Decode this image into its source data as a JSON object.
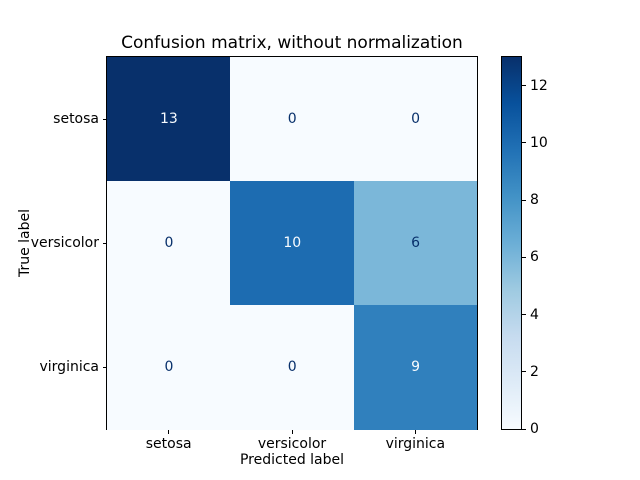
{
  "figure": {
    "background": "#ffffff"
  },
  "chart_data": {
    "type": "heatmap",
    "title": "Confusion matrix, without normalization",
    "xlabel": "Predicted label",
    "ylabel": "True label",
    "categories": [
      "setosa",
      "versicolor",
      "virginica"
    ],
    "matrix": [
      [
        13,
        0,
        0
      ],
      [
        0,
        10,
        6
      ],
      [
        0,
        0,
        9
      ]
    ],
    "cell_colors": [
      [
        "#08306b",
        "#f7fbff",
        "#f7fbff"
      ],
      [
        "#f7fbff",
        "#1d6cb1",
        "#7bb7d9"
      ],
      [
        "#f7fbff",
        "#f7fbff",
        "#3080bd"
      ]
    ],
    "cell_text_colors": [
      [
        "#f7fbff",
        "#08306b",
        "#08306b"
      ],
      [
        "#08306b",
        "#f7fbff",
        "#08306b"
      ],
      [
        "#08306b",
        "#08306b",
        "#f7fbff"
      ]
    ],
    "colormap": "Blues",
    "value_range": [
      0,
      13
    ],
    "grid": false,
    "colorbar": {
      "position": "right",
      "ticks": [
        0,
        2,
        4,
        6,
        8,
        10,
        12
      ],
      "gradient_stops": [
        "#f7fbff",
        "#deebf7",
        "#c6dbef",
        "#9ecae1",
        "#6baed6",
        "#4292c6",
        "#2171b5",
        "#08519c",
        "#08306b"
      ]
    }
  }
}
